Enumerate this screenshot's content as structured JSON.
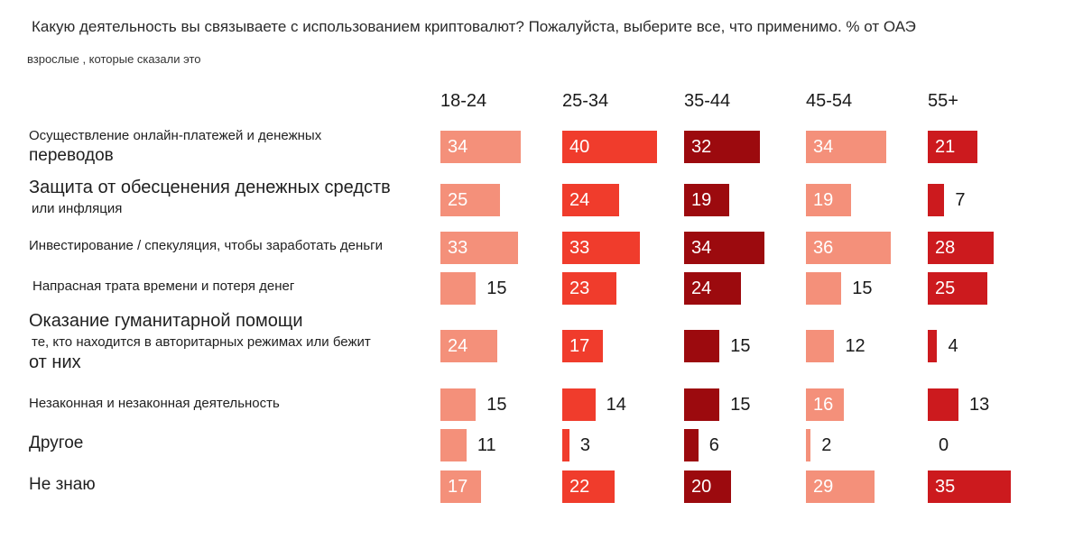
{
  "title": "Какую деятельность вы связываете с использованием криптовалют? Пожалуйста, выберите все, что применимо. % от ОАЭ",
  "subtitle": "взрослые , которые сказали это",
  "colors": [
    "#f4907a",
    "#f03c2c",
    "#9c0a0e",
    "#f4907a",
    "#cc1a1e"
  ],
  "row_labels": [
    [
      "Осуществление онлайн-платежей и денежных",
      "переводов"
    ],
    [
      "Защита от обесценения денежных средств",
      "или инфляция"
    ],
    [
      "Инвестирование / спекуляция, чтобы заработать деньги"
    ],
    [
      "Напрасная трата времени и потеря денег"
    ],
    [
      "Оказание гуманитарной помощи",
      "те, кто находится в авторитарных режимах или бежит",
      "от них"
    ],
    [
      "Незаконная и незаконная деятельность"
    ],
    [
      "Другое"
    ],
    [
      "Не знаю"
    ]
  ],
  "chart_data": {
    "type": "bar",
    "title": "Какую деятельность вы связываете с использованием криптовалют? Пожалуйста, выберите все, что применимо. % от ОАЭ",
    "subtitle": "взрослые , которые сказали это",
    "unit": "%",
    "categories": [
      "Осуществление онлайн-платежей и денежных переводов",
      "Защита от обесценения денежных средств или инфляция",
      "Инвестирование / спекуляция, чтобы заработать деньги",
      "Напрасная трата времени и потеря денег",
      "Оказание гуманитарной помощи те, кто находится в авторитарных режимах или бежит от них",
      "Незаконная и незаконная деятельность",
      "Другое",
      "Не знаю"
    ],
    "series": [
      {
        "name": "18-24",
        "values": [
          34,
          25,
          33,
          15,
          24,
          15,
          11,
          17
        ]
      },
      {
        "name": "25-34",
        "values": [
          40,
          24,
          33,
          23,
          17,
          14,
          3,
          22
        ]
      },
      {
        "name": "35-44",
        "values": [
          32,
          19,
          34,
          24,
          15,
          15,
          6,
          20
        ]
      },
      {
        "name": "45-54",
        "values": [
          34,
          19,
          36,
          15,
          12,
          16,
          2,
          29
        ]
      },
      {
        "name": "55+",
        "values": [
          21,
          7,
          28,
          25,
          4,
          13,
          0,
          35
        ]
      }
    ]
  }
}
